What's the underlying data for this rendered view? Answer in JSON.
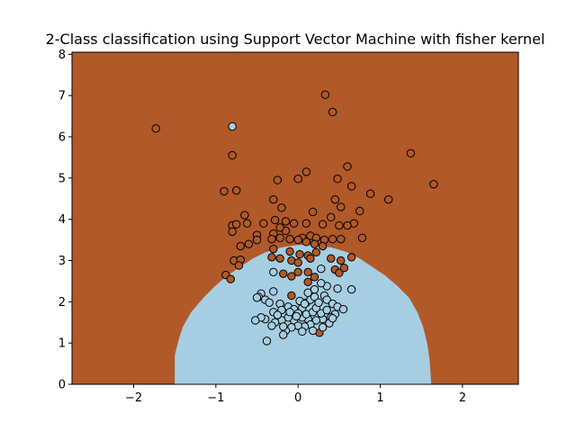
{
  "chart_data": {
    "type": "scatter",
    "title": "2-Class classification using Support Vector Machine with fisher kernel",
    "xlabel": "",
    "ylabel": "",
    "xlim": [
      -2.75,
      2.68
    ],
    "ylim": [
      0,
      8.05
    ],
    "xticks": [
      -2,
      -1,
      0,
      1,
      2
    ],
    "yticks": [
      0,
      1,
      2,
      3,
      4,
      5,
      6,
      7,
      8
    ],
    "grid": false,
    "colors": {
      "region_outer": "#b15928",
      "region_inner": "#a6cee3",
      "class_outer": "#b15928",
      "class_inner": "#a6cee3",
      "edge": "#000000"
    },
    "decision_region": {
      "inner_class": "light-blue",
      "boundary": [
        [
          -1.5,
          0.0
        ],
        [
          -1.5,
          0.7
        ],
        [
          -1.45,
          1.1
        ],
        [
          -1.4,
          1.4
        ],
        [
          -1.3,
          1.75
        ],
        [
          -1.15,
          2.1
        ],
        [
          -1.0,
          2.4
        ],
        [
          -0.85,
          2.65
        ],
        [
          -0.7,
          2.85
        ],
        [
          -0.55,
          3.05
        ],
        [
          -0.4,
          3.2
        ],
        [
          -0.2,
          3.32
        ],
        [
          0.0,
          3.38
        ],
        [
          0.2,
          3.38
        ],
        [
          0.4,
          3.32
        ],
        [
          0.6,
          3.2
        ],
        [
          0.75,
          3.05
        ],
        [
          0.9,
          2.85
        ],
        [
          1.05,
          2.65
        ],
        [
          1.2,
          2.4
        ],
        [
          1.35,
          2.1
        ],
        [
          1.45,
          1.75
        ],
        [
          1.52,
          1.4
        ],
        [
          1.57,
          1.0
        ],
        [
          1.6,
          0.6
        ],
        [
          1.62,
          0.0
        ]
      ]
    },
    "series": [
      {
        "class": "outer",
        "points": [
          [
            -1.73,
            6.2
          ],
          [
            0.33,
            7.02
          ],
          [
            0.42,
            6.6
          ],
          [
            1.37,
            5.6
          ],
          [
            1.65,
            4.85
          ],
          [
            -0.8,
            5.55
          ],
          [
            0.1,
            5.15
          ],
          [
            0.6,
            5.28
          ],
          [
            0.48,
            4.98
          ],
          [
            0.65,
            4.8
          ],
          [
            0.88,
            4.62
          ],
          [
            1.1,
            4.48
          ],
          [
            -0.9,
            4.68
          ],
          [
            -0.75,
            4.7
          ],
          [
            -0.25,
            4.95
          ],
          [
            0.0,
            4.98
          ],
          [
            -0.3,
            4.48
          ],
          [
            0.45,
            4.48
          ],
          [
            0.52,
            4.3
          ],
          [
            0.75,
            4.2
          ],
          [
            -0.65,
            4.1
          ],
          [
            -0.2,
            4.28
          ],
          [
            0.18,
            4.18
          ],
          [
            0.4,
            4.05
          ],
          [
            0.68,
            3.9
          ],
          [
            -0.8,
            3.85
          ],
          [
            -0.75,
            3.88
          ],
          [
            -0.62,
            3.9
          ],
          [
            -0.42,
            3.9
          ],
          [
            -0.28,
            3.98
          ],
          [
            -0.15,
            3.95
          ],
          [
            -0.05,
            3.9
          ],
          [
            0.1,
            3.9
          ],
          [
            0.3,
            3.88
          ],
          [
            0.5,
            3.85
          ],
          [
            0.6,
            3.85
          ],
          [
            -0.8,
            3.7
          ],
          [
            -0.5,
            3.62
          ],
          [
            -0.3,
            3.65
          ],
          [
            -0.15,
            3.72
          ],
          [
            -0.22,
            3.8
          ],
          [
            0.05,
            3.55
          ],
          [
            0.15,
            3.6
          ],
          [
            0.22,
            3.55
          ],
          [
            0.32,
            3.5
          ],
          [
            0.42,
            3.52
          ],
          [
            0.52,
            3.52
          ],
          [
            0.78,
            3.55
          ],
          [
            -0.7,
            3.35
          ],
          [
            -0.6,
            3.4
          ],
          [
            -0.5,
            3.5
          ],
          [
            -0.32,
            3.52
          ],
          [
            -0.22,
            3.55
          ],
          [
            -0.1,
            3.52
          ],
          [
            0.0,
            3.5
          ],
          [
            0.1,
            3.45
          ],
          [
            0.2,
            3.4
          ],
          [
            0.3,
            3.35
          ],
          [
            -0.3,
            3.28
          ],
          [
            -0.1,
            3.22
          ],
          [
            0.02,
            3.15
          ],
          [
            0.12,
            3.12
          ],
          [
            0.22,
            3.2
          ],
          [
            -0.78,
            3.0
          ],
          [
            -0.7,
            3.02
          ],
          [
            -0.72,
            2.88
          ],
          [
            -0.32,
            3.08
          ],
          [
            -0.22,
            3.05
          ],
          [
            -0.08,
            3.0
          ],
          [
            0.0,
            2.95
          ],
          [
            0.15,
            3.05
          ],
          [
            0.4,
            3.05
          ],
          [
            0.52,
            3.0
          ],
          [
            0.65,
            3.08
          ],
          [
            -0.88,
            2.65
          ],
          [
            -0.82,
            2.55
          ],
          [
            -0.08,
            2.62
          ],
          [
            0.0,
            2.72
          ],
          [
            0.12,
            2.72
          ],
          [
            0.2,
            2.6
          ],
          [
            -0.18,
            2.68
          ],
          [
            0.45,
            2.78
          ],
          [
            0.5,
            2.7
          ],
          [
            0.56,
            2.82
          ],
          [
            0.12,
            2.48
          ],
          [
            -0.08,
            2.15
          ],
          [
            0.26,
            1.25
          ]
        ]
      },
      {
        "class": "inner",
        "points": [
          [
            -0.8,
            6.25
          ],
          [
            0.28,
            2.8
          ],
          [
            0.35,
            2.38
          ],
          [
            0.48,
            2.32
          ],
          [
            0.65,
            2.3
          ],
          [
            -0.3,
            2.72
          ],
          [
            -0.3,
            2.25
          ],
          [
            -0.45,
            2.2
          ],
          [
            -0.48,
            2.12
          ],
          [
            -0.4,
            2.05
          ],
          [
            -0.35,
            1.98
          ],
          [
            -0.22,
            1.95
          ],
          [
            -0.12,
            1.88
          ],
          [
            -0.05,
            1.82
          ],
          [
            0.05,
            1.85
          ],
          [
            0.1,
            1.98
          ],
          [
            0.15,
            2.05
          ],
          [
            0.2,
            2.12
          ],
          [
            0.32,
            2.15
          ],
          [
            0.35,
            2.05
          ],
          [
            0.42,
            1.95
          ],
          [
            0.48,
            1.88
          ],
          [
            0.55,
            1.82
          ],
          [
            0.45,
            1.7
          ],
          [
            0.4,
            1.62
          ],
          [
            0.3,
            1.58
          ],
          [
            0.22,
            1.55
          ],
          [
            0.12,
            1.58
          ],
          [
            0.05,
            1.62
          ],
          [
            -0.05,
            1.55
          ],
          [
            -0.12,
            1.62
          ],
          [
            -0.2,
            1.55
          ],
          [
            -0.28,
            1.5
          ],
          [
            -0.32,
            1.42
          ],
          [
            -0.4,
            1.58
          ],
          [
            -0.45,
            1.62
          ],
          [
            -0.52,
            1.55
          ],
          [
            -0.3,
            1.75
          ],
          [
            -0.2,
            1.8
          ],
          [
            -0.1,
            1.75
          ],
          [
            0.0,
            1.72
          ],
          [
            0.1,
            1.7
          ],
          [
            0.18,
            1.75
          ],
          [
            0.28,
            1.72
          ],
          [
            0.35,
            1.8
          ],
          [
            0.15,
            1.45
          ],
          [
            0.08,
            1.4
          ],
          [
            0.0,
            1.42
          ],
          [
            -0.08,
            1.38
          ],
          [
            -0.15,
            1.3
          ],
          [
            -0.18,
            1.2
          ],
          [
            0.05,
            1.28
          ],
          [
            0.18,
            1.3
          ],
          [
            0.3,
            1.38
          ],
          [
            0.38,
            1.48
          ],
          [
            -0.38,
            1.05
          ],
          [
            -0.5,
            2.1
          ],
          [
            0.42,
            1.6
          ],
          [
            0.22,
            1.85
          ],
          [
            0.25,
            1.98
          ],
          [
            -0.25,
            1.68
          ],
          [
            -0.18,
            1.4
          ],
          [
            0.02,
            2.02
          ],
          [
            0.12,
            2.22
          ],
          [
            0.28,
            2.45
          ],
          [
            0.2,
            2.3
          ],
          [
            0.08,
            1.95
          ],
          [
            -0.02,
            1.65
          ]
        ]
      }
    ]
  }
}
